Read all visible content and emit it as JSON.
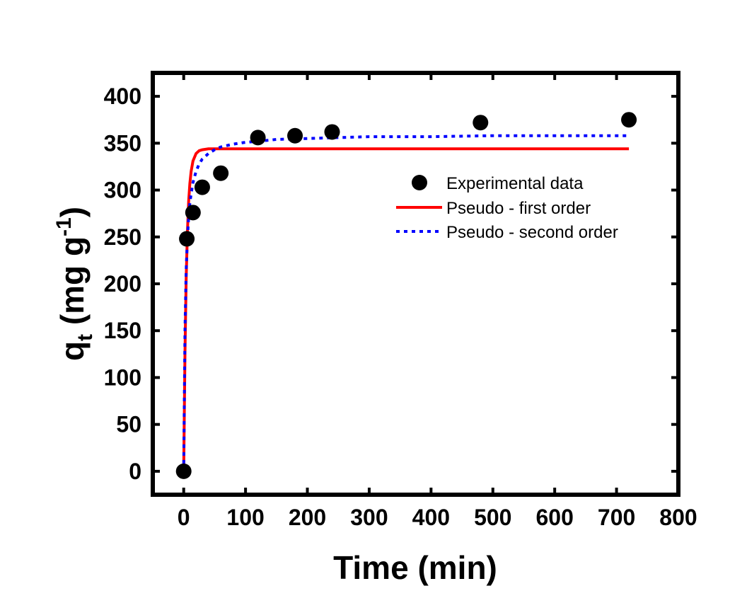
{
  "chart_data": {
    "type": "scatter",
    "title": "",
    "xlabel": "Time (min)",
    "ylabel": {
      "main": "q",
      "sub": "t",
      "rest": " (mg g",
      "sup": "-1",
      "close": ")"
    },
    "xlim": [
      -50,
      800
    ],
    "ylim": [
      -25,
      425
    ],
    "xticks": [
      0,
      100,
      200,
      300,
      400,
      500,
      600,
      700,
      800
    ],
    "yticks": [
      0,
      50,
      100,
      150,
      200,
      250,
      300,
      350,
      400
    ],
    "legend_position": "right",
    "series": [
      {
        "name": "Experimental data",
        "kind": "points",
        "color": "#000000",
        "x": [
          0,
          5,
          15,
          30,
          60,
          120,
          180,
          240,
          480,
          720
        ],
        "y": [
          0,
          248,
          276,
          303,
          318,
          356,
          358,
          362,
          372,
          375
        ]
      },
      {
        "name": "Pseudo - first order",
        "kind": "line",
        "color": "#ff0000",
        "dash": "solid",
        "x": [
          0,
          2,
          4,
          6,
          8,
          10,
          12,
          15,
          20,
          25,
          30,
          40,
          60,
          100,
          200,
          400,
          720
        ],
        "y": [
          0,
          126,
          206,
          256,
          288,
          307,
          320,
          331,
          339,
          342,
          343,
          344,
          344,
          344,
          344,
          344,
          344
        ]
      },
      {
        "name": "Pseudo - second order",
        "kind": "line",
        "color": "#0000ff",
        "dash": "dotted",
        "x": [
          0,
          2,
          4,
          6,
          8,
          10,
          12,
          15,
          20,
          25,
          30,
          40,
          50,
          60,
          80,
          100,
          120,
          150,
          200,
          250,
          300,
          400,
          500,
          600,
          720
        ],
        "y": [
          0,
          150,
          215,
          249,
          271,
          286,
          296,
          308,
          320,
          328,
          333,
          339,
          343,
          346,
          349,
          351,
          352,
          354,
          355,
          356,
          357,
          357,
          358,
          358,
          358
        ]
      }
    ]
  }
}
